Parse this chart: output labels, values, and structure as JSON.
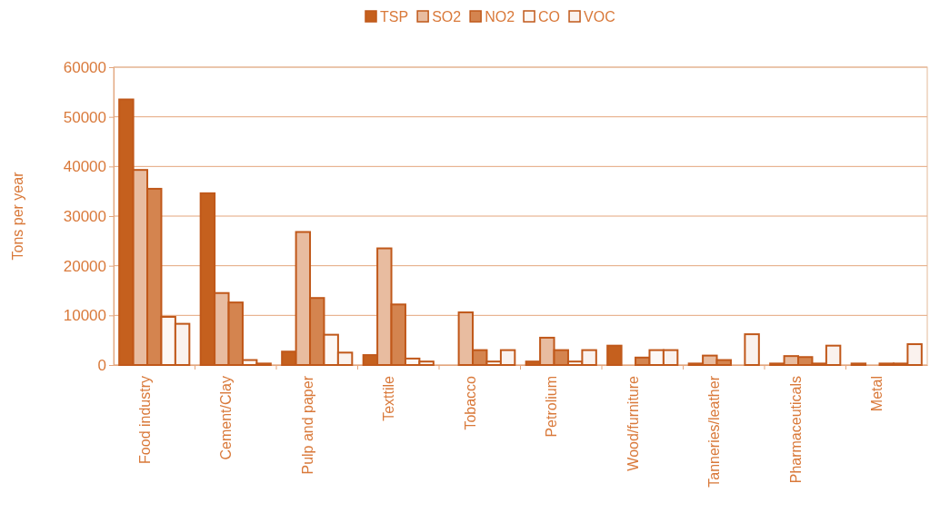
{
  "chart_data": {
    "type": "bar",
    "ylabel": "Tons per year",
    "categories": [
      "Food industry",
      "Cement/Clay",
      "Pulp and paper",
      "Texttile",
      "Tobacco",
      "Petrolium",
      "Wood/furniture",
      "Tanneries/leather",
      "Pharmaceuticals",
      "Metal"
    ],
    "series": [
      {
        "name": "TSP",
        "color": "#c5601e",
        "values": [
          53500,
          34600,
          2700,
          2000,
          0,
          700,
          3900,
          300,
          300,
          300
        ]
      },
      {
        "name": "SO2",
        "color": "#e8bca0",
        "values": [
          39300,
          14500,
          26800,
          23500,
          10600,
          5500,
          0,
          1900,
          1800,
          0
        ]
      },
      {
        "name": "NO2",
        "color": "#d4844f",
        "values": [
          35500,
          12600,
          13500,
          12200,
          3000,
          3000,
          1500,
          1000,
          1600,
          300
        ]
      },
      {
        "name": "CO",
        "color": "#fdf8f5",
        "values": [
          9700,
          1000,
          6100,
          1300,
          700,
          700,
          3000,
          0,
          300,
          300
        ]
      },
      {
        "name": "VOC",
        "color": "#faf2ee",
        "values": [
          8300,
          300,
          2500,
          700,
          3000,
          3000,
          3000,
          6200,
          3900,
          4200
        ]
      }
    ],
    "ylim": [
      0,
      60000
    ],
    "yticks": [
      0,
      10000,
      20000,
      30000,
      40000,
      50000,
      60000
    ],
    "grid": "y",
    "legend": "top"
  }
}
